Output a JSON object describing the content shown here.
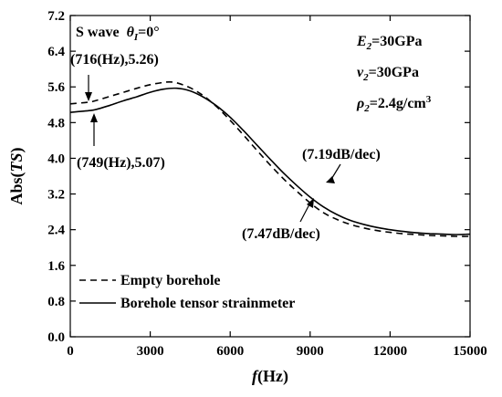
{
  "chart_data": {
    "type": "line",
    "title": "",
    "xlabel": {
      "italic": "f",
      "plain": "(Hz)"
    },
    "ylabel": {
      "plain_start": "Abs(",
      "italic": "TS",
      "plain_end": ")"
    },
    "xlim": [
      0,
      15000
    ],
    "ylim": [
      0.0,
      7.2
    ],
    "xticks": [
      0,
      3000,
      6000,
      9000,
      12000,
      15000
    ],
    "xtick_labels": [
      "0",
      "3000",
      "6000",
      "9000",
      "12000",
      "15000"
    ],
    "yticks": [
      0.0,
      0.8,
      1.6,
      2.4,
      3.2,
      4.0,
      4.8,
      5.6,
      6.4,
      7.2
    ],
    "ytick_labels": [
      "0.0",
      "0.8",
      "1.6",
      "2.4",
      "3.2",
      "4.0",
      "4.8",
      "5.6",
      "6.4",
      "7.2"
    ],
    "grid": false,
    "legend_position": "bottom-left",
    "series": [
      {
        "name": "Empty borehole",
        "style": "dashed",
        "color": "#000000",
        "x": [
          0,
          716,
          1000,
          1500,
          2000,
          2500,
          3000,
          3500,
          3700,
          4000,
          4500,
          5000,
          5500,
          6000,
          6500,
          7000,
          7500,
          8000,
          8500,
          9000,
          9500,
          10000,
          10500,
          11000,
          11500,
          12000,
          12500,
          13000,
          13500,
          14000,
          14500,
          15000
        ],
        "y": [
          5.22,
          5.26,
          5.3,
          5.39,
          5.48,
          5.57,
          5.65,
          5.7,
          5.71,
          5.69,
          5.58,
          5.4,
          5.15,
          4.85,
          4.52,
          4.18,
          3.85,
          3.54,
          3.26,
          3.0,
          2.78,
          2.63,
          2.52,
          2.44,
          2.38,
          2.34,
          2.31,
          2.29,
          2.27,
          2.26,
          2.25,
          2.25
        ]
      },
      {
        "name": "Borehole tensor strainmeter",
        "style": "solid",
        "color": "#000000",
        "x": [
          0,
          749,
          1000,
          1500,
          2000,
          2500,
          3000,
          3500,
          4000,
          4500,
          5000,
          5500,
          6000,
          6500,
          7000,
          7500,
          8000,
          8500,
          9000,
          9500,
          10000,
          10500,
          11000,
          11500,
          12000,
          12500,
          13000,
          13500,
          14000,
          14500,
          15000
        ],
        "y": [
          5.03,
          5.07,
          5.1,
          5.19,
          5.29,
          5.38,
          5.48,
          5.55,
          5.57,
          5.51,
          5.37,
          5.17,
          4.92,
          4.62,
          4.3,
          3.98,
          3.67,
          3.39,
          3.13,
          2.91,
          2.74,
          2.61,
          2.52,
          2.45,
          2.4,
          2.36,
          2.33,
          2.31,
          2.3,
          2.29,
          2.3
        ]
      }
    ],
    "legend": [
      {
        "label": "Empty borehole",
        "style": "dashed"
      },
      {
        "label": "Borehole tensor strainmeter",
        "style": "solid"
      }
    ],
    "annotations": {
      "wave": {
        "prefix": "S wave  ",
        "theta": "θ",
        "sub": "I",
        "suffix": "=0°"
      },
      "params": [
        {
          "main": "E",
          "sub": "2",
          "rest": "=30GPa",
          "sup": ""
        },
        {
          "main": "ν",
          "sub": "2",
          "rest": "=30GPa",
          "sup": ""
        },
        {
          "main": "ρ",
          "sub": "2",
          "rest": "=2.4g/cm",
          "sup": "3"
        }
      ],
      "point_empty": {
        "text": "(716(Hz),5.26)",
        "x": 716,
        "y": 5.26
      },
      "point_strain": {
        "text": "(749(Hz),5.07)",
        "x": 749,
        "y": 5.07
      },
      "slope_strain": {
        "text": "(7.19dB/dec)",
        "x": 9500,
        "y": 2.93
      },
      "slope_empty": {
        "text": "(7.47dB/dec)",
        "x": 9300,
        "y": 2.88
      }
    }
  }
}
